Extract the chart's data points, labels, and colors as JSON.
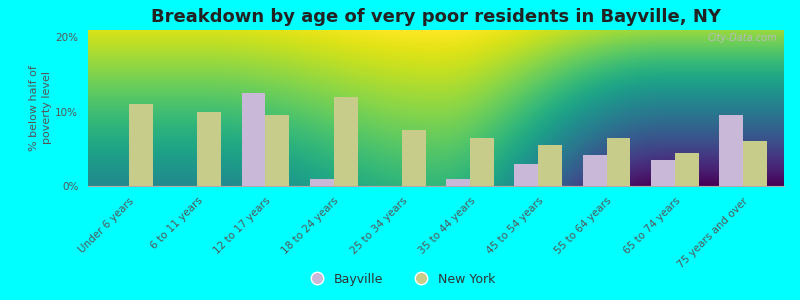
{
  "title": "Breakdown by age of very poor residents in Bayville, NY",
  "ylabel": "% below half of\npoverty level",
  "categories": [
    "Under 6 years",
    "6 to 11 years",
    "12 to 17 years",
    "18 to 24 years",
    "25 to 34 years",
    "35 to 44 years",
    "45 to 54 years",
    "55 to 64 years",
    "65 to 74 years",
    "75 years and over"
  ],
  "bayville_values": [
    0,
    0,
    12.5,
    1.0,
    0,
    1.0,
    3.0,
    4.2,
    3.5,
    9.5
  ],
  "newyork_values": [
    11.0,
    10.0,
    9.5,
    12.0,
    7.5,
    6.5,
    5.5,
    6.5,
    4.5,
    6.0
  ],
  "bayville_color": "#c9b8d8",
  "newyork_color": "#c8cc8a",
  "background_color": "#00ffff",
  "grad_top": "#f0f5e8",
  "grad_bottom": "#c8d8a0",
  "ylim": [
    0,
    21
  ],
  "yticks": [
    0,
    10,
    20
  ],
  "ytick_labels": [
    "0%",
    "10%",
    "20%"
  ],
  "bar_width": 0.35,
  "title_fontsize": 13,
  "axis_label_fontsize": 8,
  "tick_fontsize": 7.5,
  "legend_labels": [
    "Bayville",
    "New York"
  ],
  "watermark": "City-Data.com"
}
